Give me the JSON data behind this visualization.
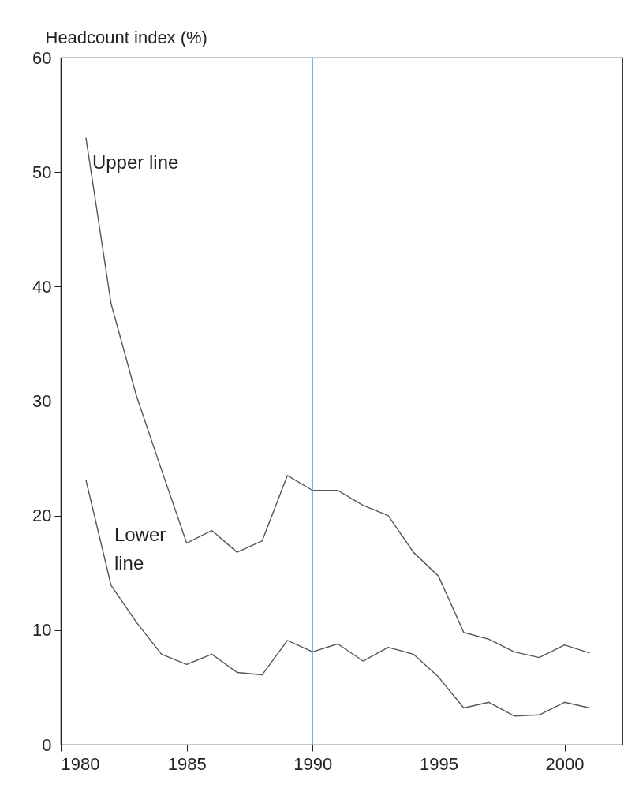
{
  "chart_data": {
    "type": "line",
    "ylabel": "Headcount index (%)",
    "x": [
      1981,
      1982,
      1983,
      1984,
      1985,
      1986,
      1987,
      1988,
      1989,
      1990,
      1991,
      1992,
      1993,
      1994,
      1995,
      1996,
      1997,
      1998,
      1999,
      2000,
      2001
    ],
    "series": [
      {
        "name": "Upper line",
        "color": "#555555",
        "values": [
          53.0,
          38.5,
          30.5,
          24.0,
          17.6,
          18.7,
          16.8,
          17.8,
          23.5,
          22.2,
          22.2,
          20.9,
          20.0,
          16.8,
          14.7,
          9.8,
          9.2,
          8.1,
          7.6,
          8.7,
          8.0
        ]
      },
      {
        "name": "Lower\nline",
        "color": "#555555",
        "values": [
          23.1,
          13.9,
          10.7,
          7.9,
          7.0,
          7.9,
          6.3,
          6.1,
          9.1,
          8.1,
          8.8,
          7.3,
          8.5,
          7.9,
          5.9,
          3.2,
          3.7,
          2.5,
          2.6,
          3.7,
          3.2
        ]
      }
    ],
    "xlim": [
      1980,
      2002.3
    ],
    "xticks": [
      1980,
      1985,
      1990,
      1995,
      2000
    ],
    "ylim": [
      0,
      60
    ],
    "yticks": [
      0,
      10,
      20,
      30,
      40,
      50,
      60
    ],
    "ref_lines": [
      {
        "axis": "x",
        "value": 1990,
        "color": "#5b9bd5"
      }
    ],
    "grid": false,
    "legend": false,
    "marker": "none",
    "line_style": "solid"
  }
}
